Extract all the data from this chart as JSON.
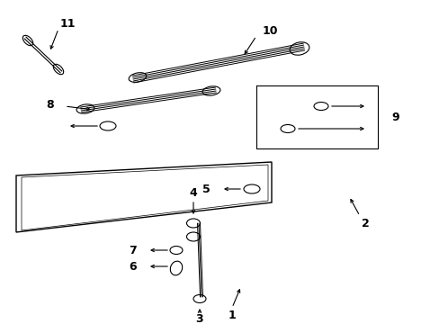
{
  "bg_color": "#ffffff",
  "lc": "#000000",
  "figsize": [
    4.89,
    3.6
  ],
  "dpi": 100
}
